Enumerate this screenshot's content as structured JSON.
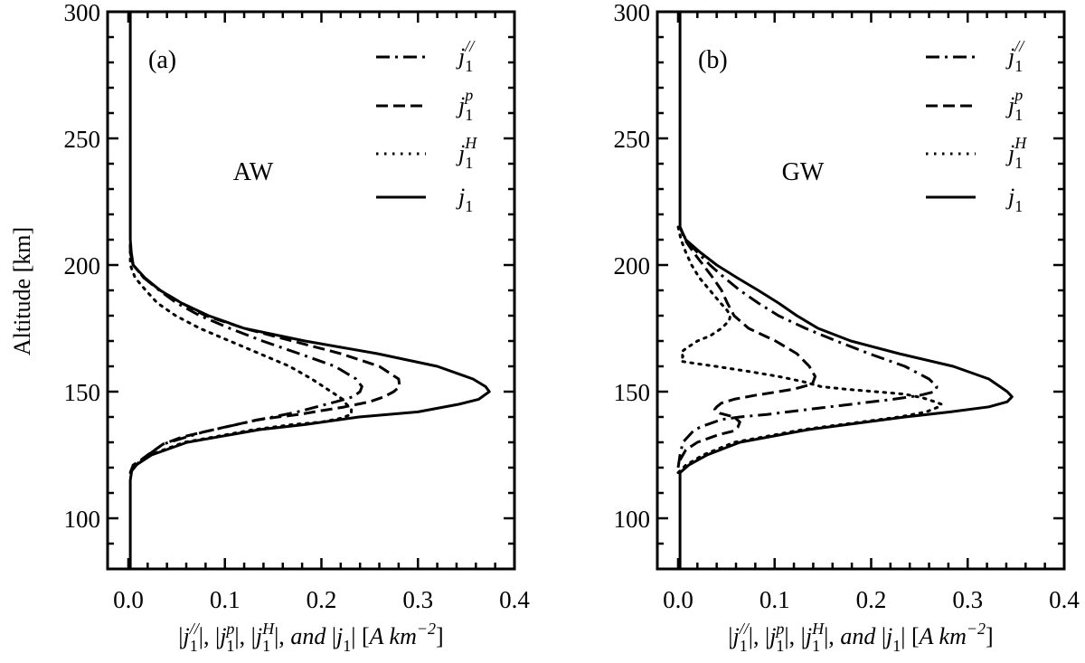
{
  "chart_data": [
    {
      "type": "line",
      "panel_label": "(a)",
      "annotation": "AW",
      "ylabel": "Altitude [km]",
      "xlabel_segments": [
        {
          "t": "|",
          "s": "n"
        },
        {
          "t": "j",
          "s": "i"
        },
        {
          "t": "1",
          "s": "sub"
        },
        {
          "t": "//",
          "s": "sup"
        },
        {
          "t": "|,  ",
          "s": "n"
        },
        {
          "t": "|",
          "s": "n"
        },
        {
          "t": "j",
          "s": "i"
        },
        {
          "t": "1",
          "s": "sub"
        },
        {
          "t": "p",
          "s": "sup"
        },
        {
          "t": "|,  ",
          "s": "n"
        },
        {
          "t": "|",
          "s": "n"
        },
        {
          "t": "j",
          "s": "i"
        },
        {
          "t": "1",
          "s": "sub"
        },
        {
          "t": "H",
          "s": "sup"
        },
        {
          "t": "|, ",
          "s": "n"
        },
        {
          "t": "and",
          "s": "i"
        },
        {
          "t": " |",
          "s": "n"
        },
        {
          "t": "j",
          "s": "i"
        },
        {
          "t": "1",
          "s": "sub"
        },
        {
          "t": "| [",
          "s": "n"
        },
        {
          "t": "A km",
          "s": "i"
        },
        {
          "t": "−2",
          "s": "sup"
        },
        {
          "t": "]",
          "s": "n"
        }
      ],
      "xlim": [
        -0.0215,
        0.4
      ],
      "ylim": [
        80,
        300
      ],
      "xticks": [
        0.0,
        0.1,
        0.2,
        0.3,
        0.4
      ],
      "xtick_labels": [
        "0.0",
        "0.1",
        "0.2",
        "0.3",
        "0.4"
      ],
      "xminor_step": 0.02,
      "yticks": [
        100,
        150,
        200,
        250,
        300
      ],
      "ytick_labels": [
        "100",
        "150",
        "200",
        "250",
        "300"
      ],
      "yminor_step": 10,
      "legend_position": "top-right",
      "series": [
        {
          "name": "j1//",
          "sub": "1",
          "sup": "//",
          "style": "dashdot",
          "altitude": [
            118,
            122.7,
            129.3,
            134,
            138.8,
            140,
            142,
            144,
            146,
            148,
            150,
            152,
            155,
            160,
            165,
            170,
            175,
            180,
            185,
            190,
            195,
            200,
            205,
            210
          ],
          "values": [
            0.002,
            0.012,
            0.036,
            0.077,
            0.133,
            0.15,
            0.175,
            0.195,
            0.215,
            0.233,
            0.24,
            0.242,
            0.236,
            0.214,
            0.177,
            0.139,
            0.105,
            0.074,
            0.05,
            0.032,
            0.016,
            0.005,
            0.002,
            0.002
          ]
        },
        {
          "name": "j1p",
          "sub": "1",
          "sup": "p",
          "style": "dashed",
          "altitude": [
            118,
            121,
            122.7,
            125,
            129.3,
            132,
            134,
            136,
            138.8,
            140,
            141,
            142.5,
            143.9,
            146,
            148,
            150,
            152,
            155,
            160,
            165,
            170,
            175,
            180,
            185,
            190,
            195,
            200,
            205,
            210
          ],
          "values": [
            0.002,
            0.005,
            0.012,
            0.02,
            0.036,
            0.055,
            0.077,
            0.1,
            0.133,
            0.155,
            0.177,
            0.2,
            0.223,
            0.25,
            0.265,
            0.275,
            0.281,
            0.28,
            0.26,
            0.22,
            0.17,
            0.12,
            0.08,
            0.055,
            0.033,
            0.016,
            0.005,
            0.002,
            0.002
          ]
        },
        {
          "name": "j1H",
          "sub": "1",
          "sup": "H",
          "style": "dotted",
          "altitude": [
            118,
            120,
            125,
            130,
            135,
            137,
            138,
            139.5,
            141,
            143,
            145,
            147,
            150,
            155,
            160,
            165,
            170,
            175,
            180,
            185,
            190,
            195,
            200,
            205
          ],
          "values": [
            0.002,
            0.004,
            0.022,
            0.058,
            0.13,
            0.17,
            0.2,
            0.22,
            0.231,
            0.231,
            0.226,
            0.222,
            0.21,
            0.19,
            0.167,
            0.136,
            0.105,
            0.074,
            0.049,
            0.03,
            0.018,
            0.007,
            0.002,
            0.002
          ]
        },
        {
          "name": "j1",
          "sub": "1",
          "sup": "",
          "style": "solid",
          "altitude": [
            80,
            115,
            120,
            122,
            125,
            130,
            135,
            137,
            140,
            142,
            145,
            147,
            150,
            152,
            155,
            160,
            165,
            170,
            175,
            180,
            185,
            190,
            195,
            200,
            205,
            210,
            300
          ],
          "values": [
            0.002,
            0.002,
            0.004,
            0.012,
            0.024,
            0.061,
            0.136,
            0.183,
            0.239,
            0.3,
            0.342,
            0.363,
            0.374,
            0.37,
            0.357,
            0.32,
            0.258,
            0.183,
            0.12,
            0.083,
            0.055,
            0.033,
            0.017,
            0.005,
            0.003,
            0.002,
            0.002
          ]
        }
      ]
    },
    {
      "type": "line",
      "panel_label": "(b)",
      "annotation": "GW",
      "xlabel_segments": [
        {
          "t": "|",
          "s": "n"
        },
        {
          "t": "j",
          "s": "i"
        },
        {
          "t": "1",
          "s": "sub"
        },
        {
          "t": "//",
          "s": "sup"
        },
        {
          "t": "|,  ",
          "s": "n"
        },
        {
          "t": "|",
          "s": "n"
        },
        {
          "t": "j",
          "s": "i"
        },
        {
          "t": "1",
          "s": "sub"
        },
        {
          "t": "p",
          "s": "sup"
        },
        {
          "t": "|,  ",
          "s": "n"
        },
        {
          "t": "|",
          "s": "n"
        },
        {
          "t": "j",
          "s": "i"
        },
        {
          "t": "1",
          "s": "sub"
        },
        {
          "t": "H",
          "s": "sup"
        },
        {
          "t": "|, ",
          "s": "n"
        },
        {
          "t": "and",
          "s": "i"
        },
        {
          "t": " |",
          "s": "n"
        },
        {
          "t": "j",
          "s": "i"
        },
        {
          "t": "1",
          "s": "sub"
        },
        {
          "t": "| [",
          "s": "n"
        },
        {
          "t": "A km",
          "s": "i"
        },
        {
          "t": "−2",
          "s": "sup"
        },
        {
          "t": "]",
          "s": "n"
        }
      ],
      "xlim": [
        -0.0215,
        0.4
      ],
      "ylim": [
        80,
        300
      ],
      "xticks": [
        0.0,
        0.1,
        0.2,
        0.3,
        0.4
      ],
      "xtick_labels": [
        "0.0",
        "0.1",
        "0.2",
        "0.3",
        "0.4"
      ],
      "xminor_step": 0.02,
      "yticks": [
        100,
        150,
        200,
        250,
        300
      ],
      "ytick_labels": [
        "100",
        "150",
        "200",
        "250",
        "300"
      ],
      "yminor_step": 10,
      "legend_position": "top-right",
      "series": [
        {
          "name": "j1//",
          "sub": "1",
          "sup": "//",
          "style": "dashdot",
          "altitude": [
            120,
            125,
            130,
            135,
            137,
            139,
            140,
            141,
            143,
            145,
            147,
            148.5,
            150,
            152,
            155,
            160,
            165,
            170,
            175,
            180,
            185,
            190,
            195,
            200,
            205,
            210,
            215
          ],
          "values": [
            0.0,
            0.002,
            0.005,
            0.017,
            0.03,
            0.045,
            0.064,
            0.092,
            0.135,
            0.179,
            0.223,
            0.25,
            0.266,
            0.268,
            0.26,
            0.235,
            0.198,
            0.164,
            0.132,
            0.104,
            0.083,
            0.064,
            0.048,
            0.033,
            0.02,
            0.008,
            0.002
          ]
        },
        {
          "name": "j1p",
          "sub": "1",
          "sup": "p",
          "style": "dashed",
          "altitude": [
            123,
            127,
            130,
            133,
            134.5,
            136,
            138,
            140,
            141.5,
            143,
            144,
            145.5,
            147,
            148.5,
            150,
            151,
            153,
            156,
            160,
            165,
            170,
            175,
            180,
            185,
            190,
            195,
            200,
            205,
            210,
            215
          ],
          "values": [
            0.002,
            0.008,
            0.02,
            0.042,
            0.058,
            0.062,
            0.064,
            0.058,
            0.043,
            0.038,
            0.04,
            0.045,
            0.058,
            0.079,
            0.104,
            0.12,
            0.139,
            0.142,
            0.136,
            0.123,
            0.101,
            0.073,
            0.058,
            0.051,
            0.045,
            0.036,
            0.026,
            0.016,
            0.007,
            0.002
          ]
        },
        {
          "name": "j1H",
          "sub": "1",
          "sup": "H",
          "style": "dotted",
          "altitude": [
            118,
            121,
            125,
            130,
            135,
            140,
            142,
            144,
            145,
            146,
            147.5,
            149,
            150,
            151,
            152,
            154,
            156,
            158,
            160,
            161,
            162,
            164,
            165.5,
            167,
            170,
            172,
            175,
            178,
            180,
            182,
            185,
            190,
            195,
            200,
            205,
            210,
            215
          ],
          "values": [
            0.0,
            0.008,
            0.026,
            0.058,
            0.129,
            0.229,
            0.257,
            0.27,
            0.273,
            0.266,
            0.254,
            0.235,
            0.204,
            0.173,
            0.148,
            0.129,
            0.104,
            0.073,
            0.039,
            0.02,
            0.003,
            0.005,
            0.003,
            0.008,
            0.02,
            0.033,
            0.045,
            0.053,
            0.054,
            0.051,
            0.044,
            0.033,
            0.022,
            0.014,
            0.008,
            0.003,
            0.0
          ]
        },
        {
          "name": "j1",
          "sub": "1",
          "sup": "",
          "style": "solid",
          "altitude": [
            80,
            118,
            121,
            125,
            130,
            135,
            140,
            142,
            144,
            146,
            148,
            150,
            155,
            160,
            165,
            170,
            175,
            180,
            185,
            190,
            195,
            200,
            205,
            210,
            215,
            300
          ],
          "values": [
            0.002,
            0.002,
            0.011,
            0.03,
            0.064,
            0.135,
            0.235,
            0.282,
            0.322,
            0.341,
            0.346,
            0.341,
            0.322,
            0.285,
            0.229,
            0.179,
            0.145,
            0.123,
            0.104,
            0.083,
            0.061,
            0.04,
            0.023,
            0.008,
            0.002,
            0.002
          ]
        }
      ]
    }
  ],
  "legend_base": "j"
}
